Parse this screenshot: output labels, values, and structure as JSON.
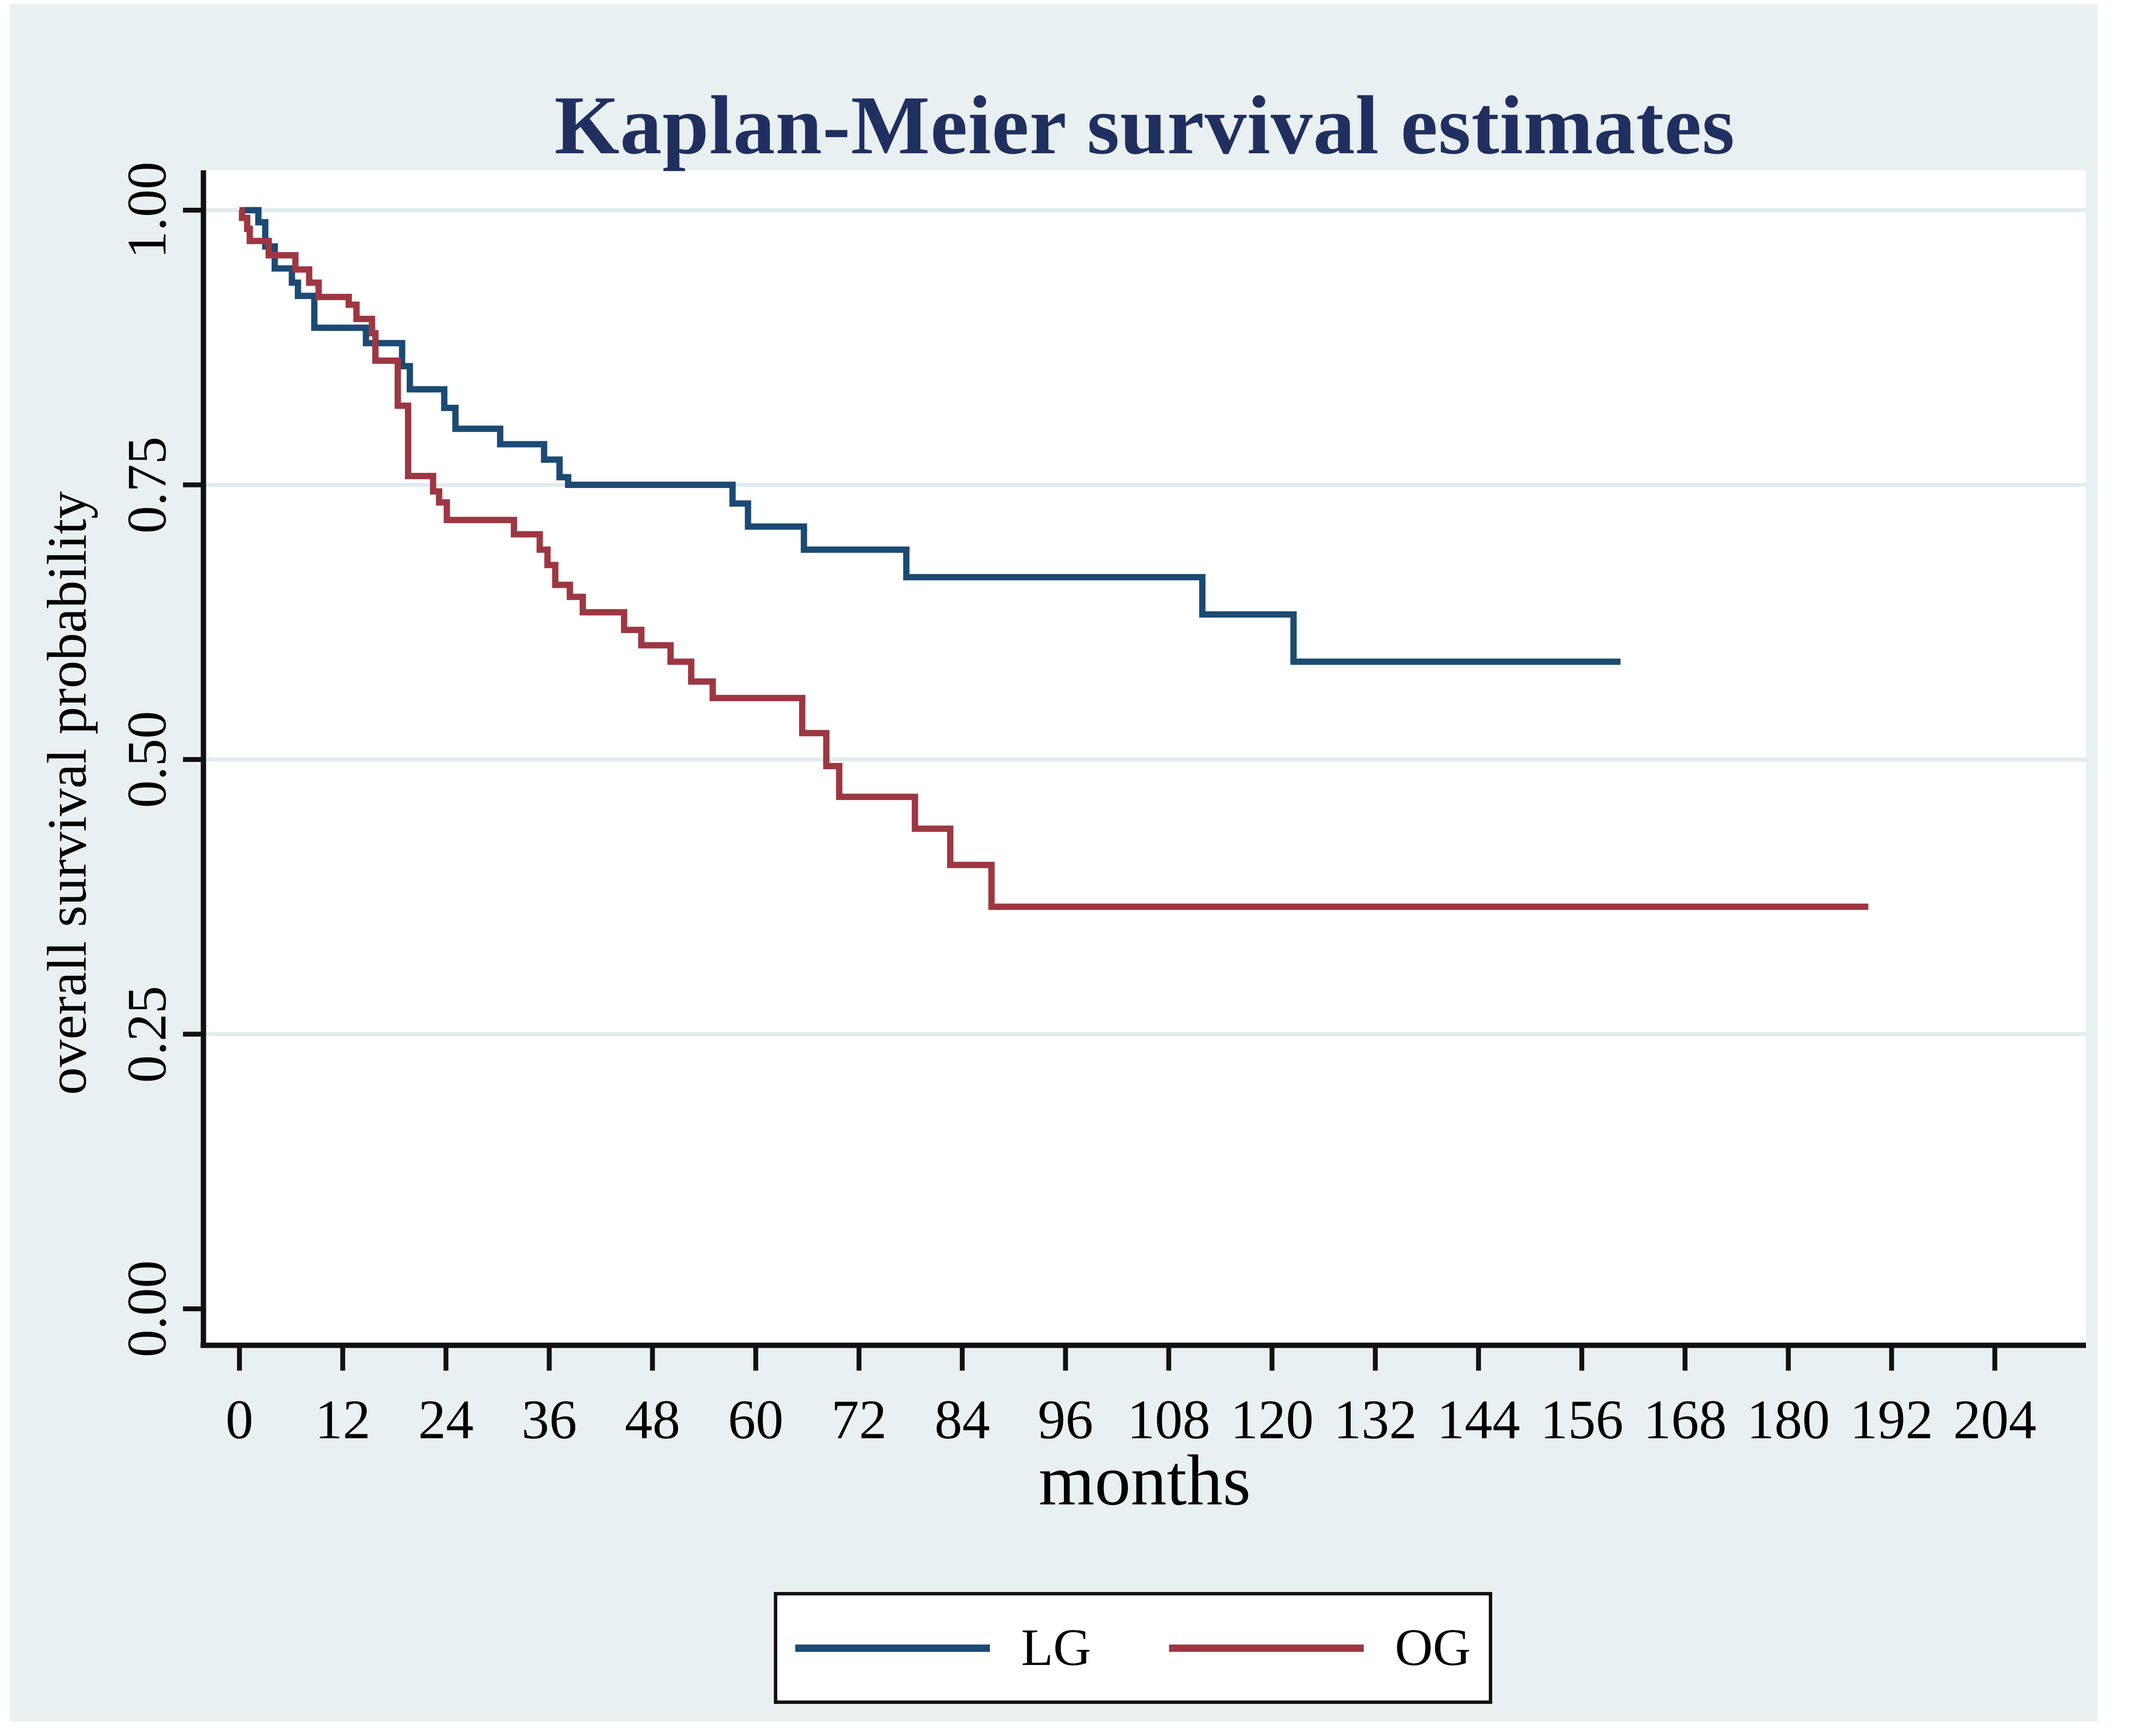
{
  "title": "Kaplan-Meier survival estimates",
  "axes": {
    "x_label": "months",
    "y_label": "overall survival probability"
  },
  "legend": {
    "items": [
      {
        "label": "LG",
        "color": "#1b4a73"
      },
      {
        "label": "OG",
        "color": "#9d3741"
      }
    ]
  },
  "colors": {
    "background": "#e9f0f2",
    "plot_bg": "#ffffff",
    "grid": "#e1ebee",
    "axis": "#111111",
    "title_color": "#1f3060",
    "lg_color": "#1b4a73",
    "og_color": "#9d3741"
  },
  "chart_data": {
    "type": "line",
    "subtype": "kaplan-meier-step",
    "title": "Kaplan-Meier survival estimates",
    "xlabel": "months",
    "ylabel": "overall survival probability",
    "xlim": [
      0,
      214
    ],
    "ylim": [
      0,
      1.0
    ],
    "grid": true,
    "grid_y": [
      0.25,
      0.5,
      0.75,
      1.0
    ],
    "xticks": [
      0,
      12,
      24,
      36,
      48,
      60,
      72,
      84,
      96,
      108,
      120,
      132,
      144,
      156,
      168,
      180,
      192,
      204
    ],
    "yticks": [
      0.0,
      0.25,
      0.5,
      0.75,
      1.0
    ],
    "ytick_format": "0.00",
    "legend_position": "bottom",
    "series": [
      {
        "name": "LG",
        "color": "#1b4a73",
        "end": 160.5,
        "steps": [
          [
            0,
            1.0
          ],
          [
            2.2,
            0.989
          ],
          [
            3.0,
            0.967
          ],
          [
            4.1,
            0.947
          ],
          [
            6.1,
            0.934
          ],
          [
            6.8,
            0.922
          ],
          [
            8.7,
            0.893
          ],
          [
            14.7,
            0.879
          ],
          [
            18.9,
            0.858
          ],
          [
            19.8,
            0.837
          ],
          [
            23.8,
            0.82
          ],
          [
            25.1,
            0.801
          ],
          [
            30.3,
            0.787
          ],
          [
            35.4,
            0.773
          ],
          [
            37.2,
            0.757
          ],
          [
            38.2,
            0.75
          ],
          [
            57.3,
            0.733
          ],
          [
            59.1,
            0.712
          ],
          [
            65.6,
            0.691
          ],
          [
            77.5,
            0.666
          ],
          [
            111.9,
            0.632
          ],
          [
            122.5,
            0.589
          ]
        ]
      },
      {
        "name": "OG",
        "color": "#9d3741",
        "end": 189.3,
        "steps": [
          [
            0,
            1.0
          ],
          [
            0.3,
            0.993
          ],
          [
            0.9,
            0.983
          ],
          [
            1.2,
            0.972
          ],
          [
            3.4,
            0.959
          ],
          [
            6.5,
            0.946
          ],
          [
            8.1,
            0.934
          ],
          [
            9.2,
            0.921
          ],
          [
            12.7,
            0.914
          ],
          [
            13.6,
            0.901
          ],
          [
            15.4,
            0.888
          ],
          [
            15.8,
            0.863
          ],
          [
            18.4,
            0.822
          ],
          [
            19.6,
            0.758
          ],
          [
            22.5,
            0.744
          ],
          [
            23.2,
            0.734
          ],
          [
            24.1,
            0.718
          ],
          [
            31.9,
            0.705
          ],
          [
            34.9,
            0.691
          ],
          [
            35.8,
            0.677
          ],
          [
            36.7,
            0.659
          ],
          [
            38.4,
            0.648
          ],
          [
            39.9,
            0.634
          ],
          [
            44.7,
            0.618
          ],
          [
            46.7,
            0.604
          ],
          [
            50.1,
            0.589
          ],
          [
            52.5,
            0.571
          ],
          [
            55.0,
            0.556
          ],
          [
            65.4,
            0.524
          ],
          [
            68.2,
            0.494
          ],
          [
            69.7,
            0.466
          ],
          [
            78.5,
            0.437
          ],
          [
            82.6,
            0.404
          ],
          [
            87.4,
            0.366
          ]
        ]
      }
    ]
  }
}
